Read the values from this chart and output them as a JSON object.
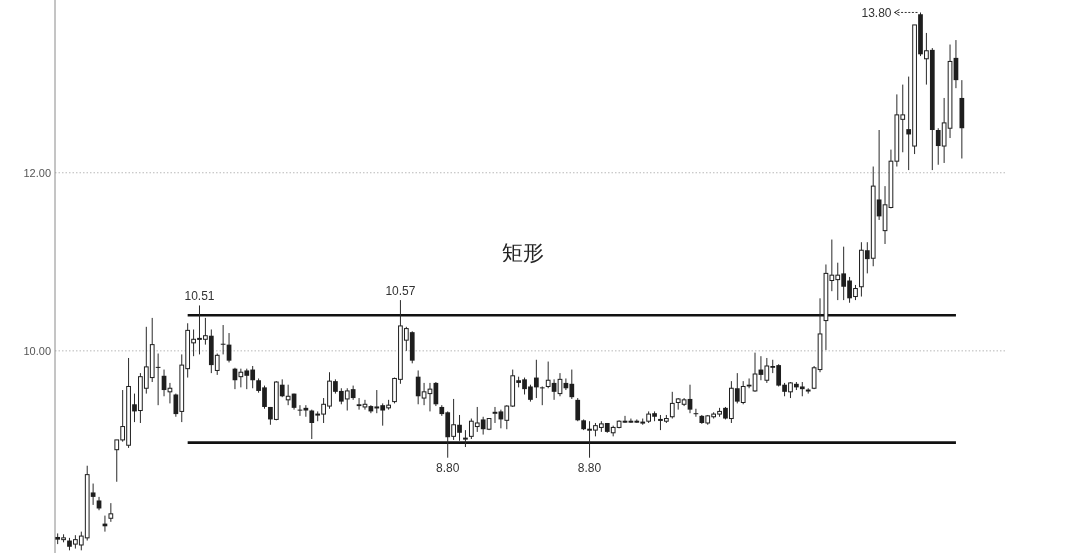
{
  "chart_data": {
    "type": "candlestick",
    "categories": [
      null,
      null,
      null,
      null,
      null,
      null,
      null,
      null,
      null,
      null,
      null,
      null,
      null,
      null,
      null,
      null,
      null,
      null,
      null,
      null,
      null,
      null,
      null,
      null,
      null,
      null,
      null,
      null,
      null,
      null,
      null,
      null,
      null,
      null,
      null,
      null,
      null,
      null,
      null,
      null,
      null,
      null,
      null,
      null,
      null,
      null,
      null,
      null,
      null,
      null,
      null,
      null,
      null,
      null,
      null,
      null,
      null,
      null,
      null,
      null,
      null,
      null,
      null,
      null,
      null,
      null,
      null,
      null,
      null,
      null,
      null,
      null,
      null,
      null,
      null,
      null,
      null,
      null,
      null,
      null,
      null,
      null,
      null,
      null,
      null,
      null,
      null,
      null,
      null,
      null,
      null,
      null,
      null,
      null,
      null,
      null,
      null,
      null,
      null,
      null,
      null,
      null,
      null,
      null,
      null,
      null,
      null,
      null,
      null,
      null,
      null,
      null,
      null,
      null,
      null,
      null,
      null,
      null,
      null,
      null,
      null,
      null,
      null,
      null,
      null,
      null,
      null,
      null,
      null,
      null,
      null,
      null,
      null,
      null,
      null,
      null,
      null,
      null,
      null,
      null,
      null,
      null,
      null,
      null,
      null,
      null,
      null,
      null,
      null,
      null,
      null,
      null,
      null,
      null
    ],
    "ohlc": [
      [
        7.91,
        7.95,
        7.83,
        7.88
      ],
      [
        7.88,
        7.94,
        7.85,
        7.9
      ],
      [
        7.87,
        7.9,
        7.76,
        7.8
      ],
      [
        7.83,
        7.93,
        7.78,
        7.88
      ],
      [
        7.82,
        7.97,
        7.76,
        7.92
      ],
      [
        7.9,
        8.71,
        7.87,
        8.61
      ],
      [
        8.41,
        8.51,
        8.27,
        8.36
      ],
      [
        8.32,
        8.36,
        8.21,
        8.23
      ],
      [
        8.06,
        8.15,
        7.97,
        8.03
      ],
      [
        8.12,
        8.29,
        8.08,
        8.17
      ],
      [
        8.89,
        9.0,
        8.53,
        9.0
      ],
      [
        9.0,
        9.56,
        8.98,
        9.15
      ],
      [
        8.94,
        9.92,
        8.91,
        9.6
      ],
      [
        9.4,
        9.52,
        9.2,
        9.32
      ],
      [
        9.33,
        9.75,
        9.19,
        9.71
      ],
      [
        9.58,
        10.27,
        9.52,
        9.82
      ],
      [
        9.7,
        10.37,
        9.65,
        10.07
      ],
      [
        9.82,
        9.97,
        9.39,
        9.81
      ],
      [
        9.72,
        9.79,
        9.49,
        9.56
      ],
      [
        9.54,
        9.64,
        9.41,
        9.58
      ],
      [
        9.51,
        9.52,
        9.26,
        9.29
      ],
      [
        9.32,
        9.96,
        9.2,
        9.84
      ],
      [
        9.8,
        10.31,
        9.7,
        10.23
      ],
      [
        10.09,
        10.24,
        9.94,
        10.13
      ],
      [
        10.13,
        10.51,
        9.96,
        10.14
      ],
      [
        10.13,
        10.37,
        10.07,
        10.17
      ],
      [
        10.17,
        10.24,
        9.75,
        9.84
      ],
      [
        9.78,
        9.97,
        9.73,
        9.95
      ],
      [
        10.08,
        10.29,
        9.96,
        10.07
      ],
      [
        10.07,
        10.2,
        9.87,
        9.89
      ],
      [
        9.8,
        9.81,
        9.57,
        9.67
      ],
      [
        9.71,
        9.8,
        9.59,
        9.76
      ],
      [
        9.78,
        9.8,
        9.57,
        9.72
      ],
      [
        9.79,
        9.83,
        9.58,
        9.67
      ],
      [
        9.67,
        9.69,
        9.53,
        9.55
      ],
      [
        9.59,
        9.61,
        9.35,
        9.37
      ],
      [
        9.37,
        9.37,
        9.17,
        9.23
      ],
      [
        9.23,
        9.66,
        9.22,
        9.65
      ],
      [
        9.62,
        9.68,
        9.48,
        9.49
      ],
      [
        9.45,
        9.62,
        9.39,
        9.49
      ],
      [
        9.52,
        9.52,
        9.34,
        9.36
      ],
      [
        9.34,
        9.39,
        9.27,
        9.33
      ],
      [
        9.36,
        9.39,
        9.26,
        9.33
      ],
      [
        9.33,
        9.34,
        9.01,
        9.19
      ],
      [
        9.28,
        9.32,
        9.21,
        9.29
      ],
      [
        9.29,
        9.47,
        9.19,
        9.4
      ],
      [
        9.38,
        9.76,
        9.35,
        9.66
      ],
      [
        9.66,
        9.68,
        9.52,
        9.54
      ],
      [
        9.55,
        9.58,
        9.4,
        9.43
      ],
      [
        9.46,
        9.58,
        9.33,
        9.55
      ],
      [
        9.57,
        9.61,
        9.45,
        9.47
      ],
      [
        9.4,
        9.47,
        9.34,
        9.38
      ],
      [
        9.37,
        9.45,
        9.34,
        9.4
      ],
      [
        9.38,
        9.39,
        9.3,
        9.32
      ],
      [
        9.37,
        9.56,
        9.3,
        9.37
      ],
      [
        9.39,
        9.41,
        9.16,
        9.33
      ],
      [
        9.36,
        9.45,
        9.34,
        9.39
      ],
      [
        9.43,
        9.7,
        9.41,
        9.69
      ],
      [
        9.68,
        10.57,
        9.63,
        10.28
      ],
      [
        10.12,
        10.27,
        10.0,
        10.25
      ],
      [
        10.21,
        10.22,
        9.86,
        9.89
      ],
      [
        9.71,
        9.78,
        9.4,
        9.49
      ],
      [
        9.47,
        9.64,
        9.39,
        9.54
      ],
      [
        9.52,
        9.64,
        9.32,
        9.57
      ],
      [
        9.64,
        9.65,
        9.38,
        9.4
      ],
      [
        9.37,
        9.39,
        9.27,
        9.29
      ],
      [
        9.31,
        9.32,
        8.8,
        9.03
      ],
      [
        9.04,
        9.46,
        9.0,
        9.17
      ],
      [
        9.17,
        9.28,
        8.99,
        9.08
      ],
      [
        9.01,
        9.11,
        8.92,
        9.02
      ],
      [
        9.04,
        9.24,
        9.01,
        9.21
      ],
      [
        9.15,
        9.37,
        9.09,
        9.19
      ],
      [
        9.23,
        9.26,
        9.06,
        9.12
      ],
      [
        9.12,
        9.24,
        9.11,
        9.24
      ],
      [
        9.3,
        9.37,
        9.19,
        9.31
      ],
      [
        9.32,
        9.34,
        9.13,
        9.23
      ],
      [
        9.22,
        9.39,
        9.12,
        9.38
      ],
      [
        9.38,
        9.79,
        9.37,
        9.72
      ],
      [
        9.67,
        9.71,
        9.59,
        9.64
      ],
      [
        9.68,
        9.7,
        9.51,
        9.57
      ],
      [
        9.6,
        9.62,
        9.43,
        9.45
      ],
      [
        9.7,
        9.9,
        9.47,
        9.59
      ],
      [
        9.59,
        9.6,
        9.39,
        9.58
      ],
      [
        9.6,
        9.88,
        9.58,
        9.67
      ],
      [
        9.64,
        9.68,
        9.45,
        9.54
      ],
      [
        9.52,
        9.75,
        9.49,
        9.68
      ],
      [
        9.64,
        9.69,
        9.56,
        9.58
      ],
      [
        9.63,
        9.79,
        9.46,
        9.48
      ],
      [
        9.45,
        9.47,
        9.21,
        9.22
      ],
      [
        9.22,
        9.23,
        9.11,
        9.12
      ],
      [
        9.11,
        9.21,
        8.8,
        9.12
      ],
      [
        9.11,
        9.19,
        9.04,
        9.16
      ],
      [
        9.14,
        9.21,
        9.09,
        9.18
      ],
      [
        9.19,
        9.19,
        9.08,
        9.09
      ],
      [
        9.08,
        9.16,
        9.04,
        9.14
      ],
      [
        9.14,
        9.22,
        9.13,
        9.21
      ],
      [
        9.2,
        9.27,
        9.19,
        9.21
      ],
      [
        9.21,
        9.24,
        9.19,
        9.21
      ],
      [
        9.21,
        9.23,
        9.19,
        9.21
      ],
      [
        9.2,
        9.24,
        9.17,
        9.2
      ],
      [
        9.21,
        9.32,
        9.19,
        9.29
      ],
      [
        9.3,
        9.32,
        9.21,
        9.26
      ],
      [
        9.23,
        9.28,
        9.11,
        9.23
      ],
      [
        9.21,
        9.28,
        9.19,
        9.24
      ],
      [
        9.26,
        9.54,
        9.24,
        9.41
      ],
      [
        9.42,
        9.47,
        9.34,
        9.46
      ],
      [
        9.4,
        9.47,
        9.38,
        9.45
      ],
      [
        9.46,
        9.62,
        9.3,
        9.34
      ],
      [
        9.3,
        9.35,
        9.26,
        9.29
      ],
      [
        9.27,
        9.28,
        9.18,
        9.19
      ],
      [
        9.19,
        9.28,
        9.17,
        9.27
      ],
      [
        9.26,
        9.31,
        9.24,
        9.29
      ],
      [
        9.29,
        9.36,
        9.26,
        9.32
      ],
      [
        9.36,
        9.37,
        9.23,
        9.24
      ],
      [
        9.24,
        9.66,
        9.19,
        9.58
      ],
      [
        9.58,
        9.75,
        9.41,
        9.43
      ],
      [
        9.42,
        9.66,
        9.4,
        9.6
      ],
      [
        9.62,
        9.69,
        9.58,
        9.6
      ],
      [
        9.55,
        9.98,
        9.54,
        9.74
      ],
      [
        9.79,
        9.94,
        9.67,
        9.73
      ],
      [
        9.67,
        9.92,
        9.64,
        9.83
      ],
      [
        9.83,
        9.9,
        9.75,
        9.81
      ],
      [
        9.84,
        9.85,
        9.6,
        9.61
      ],
      [
        9.62,
        9.64,
        9.49,
        9.54
      ],
      [
        9.54,
        9.65,
        9.47,
        9.64
      ],
      [
        9.63,
        9.65,
        9.56,
        9.59
      ],
      [
        9.6,
        9.65,
        9.49,
        9.57
      ],
      [
        9.55,
        9.58,
        9.52,
        9.56
      ],
      [
        9.58,
        9.83,
        9.57,
        9.81
      ],
      [
        9.79,
        10.59,
        9.76,
        10.19
      ],
      [
        10.34,
        10.97,
        10.01,
        10.87
      ],
      [
        10.79,
        11.25,
        10.67,
        10.85
      ],
      [
        10.8,
        10.99,
        10.57,
        10.85
      ],
      [
        10.87,
        11.17,
        10.57,
        10.72
      ],
      [
        10.79,
        10.83,
        10.54,
        10.59
      ],
      [
        10.61,
        10.74,
        10.57,
        10.7
      ],
      [
        10.72,
        11.22,
        10.61,
        11.13
      ],
      [
        11.13,
        11.22,
        10.87,
        11.03
      ],
      [
        11.04,
        12.07,
        10.95,
        11.85
      ],
      [
        11.7,
        12.48,
        11.47,
        11.51
      ],
      [
        11.35,
        11.85,
        11.2,
        11.64
      ],
      [
        11.61,
        12.26,
        11.6,
        12.13
      ],
      [
        12.13,
        12.88,
        12.07,
        12.65
      ],
      [
        12.6,
        12.99,
        12.23,
        12.65
      ],
      [
        12.49,
        13.08,
        12.03,
        12.43
      ],
      [
        12.3,
        13.66,
        12.21,
        13.66
      ],
      [
        13.78,
        13.8,
        13.31,
        13.33
      ],
      [
        13.28,
        13.57,
        12.99,
        13.37
      ],
      [
        13.38,
        13.4,
        12.03,
        12.48
      ],
      [
        12.48,
        12.5,
        12.09,
        12.3
      ],
      [
        12.3,
        12.84,
        12.11,
        12.56
      ],
      [
        12.5,
        13.44,
        12.39,
        13.25
      ],
      [
        13.29,
        13.49,
        12.95,
        13.04
      ],
      [
        12.84,
        13.04,
        12.16,
        12.5
      ]
    ],
    "series": [
      {
        "type": "line",
        "color": "#111111",
        "values": [
          null,
          null,
          null,
          null,
          null,
          null,
          null,
          null,
          null,
          null,
          null,
          null,
          null,
          null,
          null,
          null,
          null,
          null,
          null,
          null,
          null,
          null,
          10.4,
          10.4,
          10.4,
          10.4,
          10.4,
          10.4,
          10.4,
          10.4,
          10.4,
          10.4,
          10.4,
          10.4,
          10.4,
          10.4,
          10.4,
          10.4,
          10.4,
          10.4,
          10.4,
          10.4,
          10.4,
          10.4,
          10.4,
          10.4,
          10.4,
          10.4,
          10.4,
          10.4,
          10.4,
          10.4,
          10.4,
          10.4,
          10.4,
          10.4,
          10.4,
          10.4,
          10.4,
          10.4,
          10.4,
          10.4,
          10.4,
          10.4,
          10.4,
          10.4,
          10.4,
          10.4,
          10.4,
          10.4,
          10.4,
          10.4,
          10.4,
          10.4,
          10.4,
          10.4,
          10.4,
          10.4,
          10.4,
          10.4,
          10.4,
          10.4,
          10.4,
          10.4,
          10.4,
          10.4,
          10.4,
          10.4,
          10.4,
          10.4,
          10.4,
          10.4,
          10.4,
          10.4,
          10.4,
          10.4,
          10.4,
          10.4,
          10.4,
          10.4,
          10.4,
          10.4,
          10.4,
          10.4,
          10.4,
          10.4,
          10.4,
          10.4,
          10.4,
          10.4,
          10.4,
          10.4,
          10.4,
          10.4,
          10.4,
          10.4,
          10.4,
          10.4,
          10.4,
          10.4,
          10.4,
          10.4,
          10.4,
          10.4,
          10.4,
          10.4,
          10.4,
          10.4,
          10.4,
          10.4,
          10.4,
          10.4,
          10.4,
          10.4,
          10.4,
          10.4,
          10.4,
          10.4,
          10.4,
          10.4,
          10.4,
          10.4,
          10.4,
          10.4,
          10.4,
          10.4,
          10.4,
          10.4,
          10.4,
          10.4,
          10.4,
          10.4,
          10.4,
          null
        ]
      },
      {
        "type": "line",
        "color": "#111111",
        "values": [
          null,
          null,
          null,
          null,
          null,
          null,
          null,
          null,
          null,
          null,
          null,
          null,
          null,
          null,
          null,
          null,
          null,
          null,
          null,
          null,
          null,
          null,
          8.97,
          8.97,
          8.97,
          8.97,
          8.97,
          8.97,
          8.97,
          8.97,
          8.97,
          8.97,
          8.97,
          8.97,
          8.97,
          8.97,
          8.97,
          8.97,
          8.97,
          8.97,
          8.97,
          8.97,
          8.97,
          8.97,
          8.97,
          8.97,
          8.97,
          8.97,
          8.97,
          8.97,
          8.97,
          8.97,
          8.97,
          8.97,
          8.97,
          8.97,
          8.97,
          8.97,
          8.97,
          8.97,
          8.97,
          8.97,
          8.97,
          8.97,
          8.97,
          8.97,
          8.97,
          8.97,
          8.97,
          8.97,
          8.97,
          8.97,
          8.97,
          8.97,
          8.97,
          8.97,
          8.97,
          8.97,
          8.97,
          8.97,
          8.97,
          8.97,
          8.97,
          8.97,
          8.97,
          8.97,
          8.97,
          8.97,
          8.97,
          8.97,
          8.97,
          8.97,
          8.97,
          8.97,
          8.97,
          8.97,
          8.97,
          8.97,
          8.97,
          8.97,
          8.97,
          8.97,
          8.97,
          8.97,
          8.97,
          8.97,
          8.97,
          8.97,
          8.97,
          8.97,
          8.97,
          8.97,
          8.97,
          8.97,
          8.97,
          8.97,
          8.97,
          8.97,
          8.97,
          8.97,
          8.97,
          8.97,
          8.97,
          8.97,
          8.97,
          8.97,
          8.97,
          8.97,
          8.97,
          8.97,
          8.97,
          8.97,
          8.97,
          8.97,
          8.97,
          8.97,
          8.97,
          8.97,
          8.97,
          8.97,
          8.97,
          8.97,
          8.97,
          8.97,
          8.97,
          8.97,
          8.97,
          8.97,
          8.97,
          8.97,
          8.97,
          8.97,
          8.97,
          null
        ]
      }
    ],
    "ylim": [
      7.73,
      13.94
    ],
    "yticks": [
      {
        "value": 10,
        "label": "10.00"
      },
      {
        "value": 12,
        "label": "12.00"
      }
    ],
    "grid": "y",
    "tick_labels": "y",
    "annotations": [
      {
        "text": "10.51",
        "y": 10.51
      },
      {
        "text": "10.57",
        "y": 10.57
      },
      {
        "text": "8.80",
        "y": 8.8
      },
      {
        "text": "8.80",
        "y": 8.8
      },
      "矩形",
      "13.80"
    ]
  }
}
